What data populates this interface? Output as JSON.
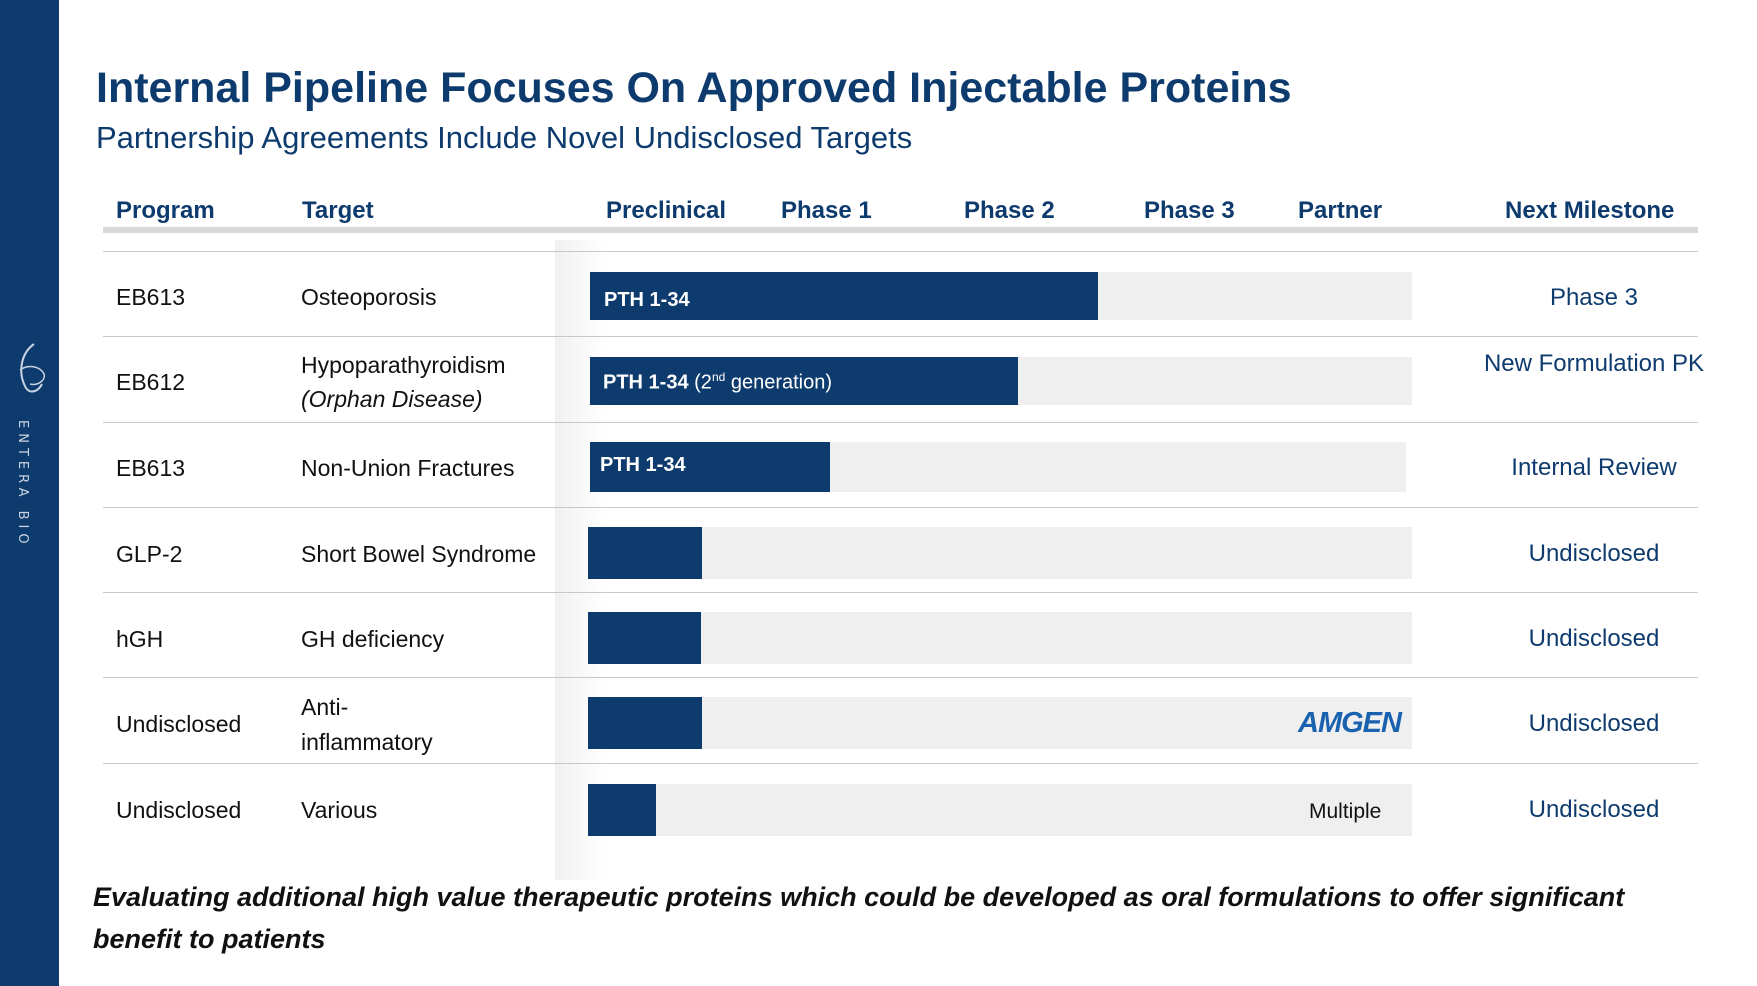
{
  "sidebar": {
    "brand": "ENTERA BIO",
    "color": "#0e3b6e"
  },
  "title": "Internal Pipeline Focuses On Approved Injectable Proteins",
  "subtitle": "Partnership Agreements Include Novel Undisclosed Targets",
  "headers": {
    "program": "Program",
    "target": "Target",
    "preclinical": "Preclinical",
    "phase1": "Phase 1",
    "phase2": "Phase 2",
    "phase3": "Phase 3",
    "partner": "Partner",
    "milestone": "Next Milestone"
  },
  "rows": [
    {
      "program": "EB613",
      "target": "Osteoporosis",
      "target_note": "",
      "bar_label": "PTH 1-34",
      "bar_label_suffix": "",
      "progress": 0.62,
      "partner": "",
      "milestone": "Phase 3"
    },
    {
      "program": "EB612",
      "target": "Hypoparathyroidism",
      "target_note": "(Orphan Disease)",
      "bar_label": "PTH 1-34",
      "bar_label_suffix_pre": " (2",
      "bar_label_sup": "nd",
      "bar_label_suffix_post": " generation)",
      "progress": 0.52,
      "partner": "",
      "milestone": "New Formulation PK"
    },
    {
      "program": "EB613",
      "target": "Non-Union Fractures",
      "target_note": "",
      "bar_label": "PTH 1-34",
      "progress": 0.29,
      "partner": "",
      "milestone": "Internal Review"
    },
    {
      "program": "GLP-2",
      "target": "Short Bowel Syndrome",
      "target_note": "",
      "bar_label": "",
      "progress": 0.14,
      "partner": "",
      "milestone": "Undisclosed"
    },
    {
      "program": "hGH",
      "target": "GH deficiency",
      "target_note": "",
      "bar_label": "",
      "progress": 0.14,
      "partner": "",
      "milestone": "Undisclosed"
    },
    {
      "program": "Undisclosed",
      "target": "Anti-",
      "target_note": "inflammatory",
      "bar_label": "",
      "progress": 0.14,
      "partner": "AMGEN",
      "milestone": "Undisclosed"
    },
    {
      "program": "Undisclosed",
      "target": "Various",
      "target_note": "",
      "bar_label": "",
      "progress": 0.08,
      "partner": "Multiple",
      "milestone": "Undisclosed"
    }
  ],
  "footer": "Evaluating additional high value therapeutic proteins which could be developed as oral formulations to offer significant benefit to patients",
  "colors": {
    "primary": "#0e3b6e",
    "track": "#efefef",
    "amgen": "#1a62b0"
  }
}
